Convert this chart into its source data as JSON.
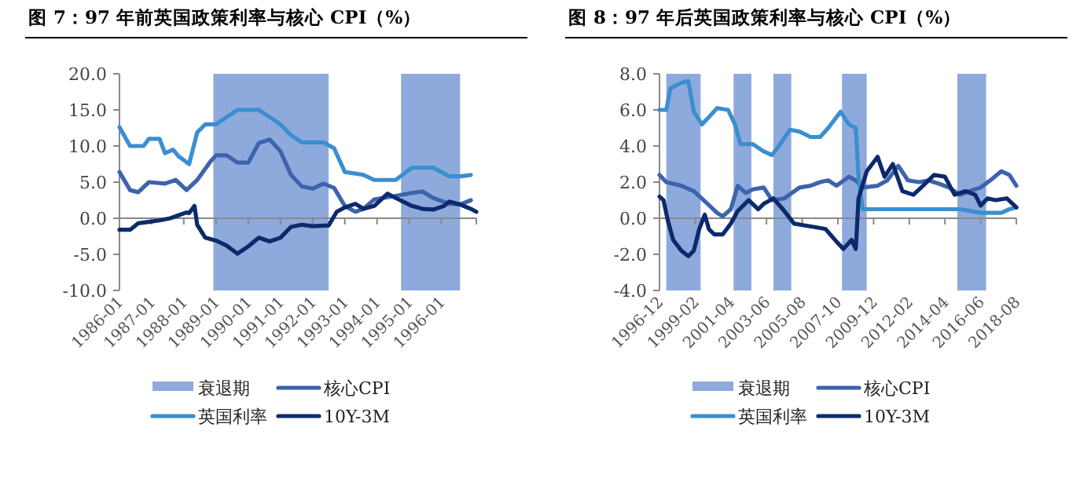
{
  "chart_data": [
    {
      "type": "line",
      "title": "图 7：97 年前英国政策利率与核心 CPI（%）",
      "xlim": [
        "1986-01",
        "1997-02"
      ],
      "xticks": [
        "1986-01",
        "1987-01",
        "1988-01",
        "1989-01",
        "1990-01",
        "1991-01",
        "1992-01",
        "1993-01",
        "1994-01",
        "1995-01",
        "1996-01"
      ],
      "ylim": [
        -10,
        20
      ],
      "yticks": [
        {
          "value": 20,
          "label": "20.0"
        },
        {
          "value": 15,
          "label": "15.0"
        },
        {
          "value": 10,
          "label": "10.0"
        },
        {
          "value": 5,
          "label": "5.0"
        },
        {
          "value": 0,
          "label": "0.0"
        },
        {
          "value": -5,
          "label": "-5.0"
        },
        {
          "value": -10,
          "label": "-10.0"
        }
      ],
      "legend": "bottom",
      "bands": [
        {
          "axis": "x",
          "from": "1988-12",
          "to": "1992-07",
          "label": "衰退期",
          "color": "#8eaadc"
        },
        {
          "axis": "x",
          "from": "1994-10",
          "to": "1996-08",
          "color": "#8eaadc"
        }
      ],
      "series": [
        {
          "name": "核心CPI",
          "color": "#3d63ad",
          "x": [
            "1986-01",
            "1986-05",
            "1986-08",
            "1986-12",
            "1987-06",
            "1987-10",
            "1988-02",
            "1988-06",
            "1988-11",
            "1989-01",
            "1989-05",
            "1989-09",
            "1990-01",
            "1990-05",
            "1990-09",
            "1991-01",
            "1991-05",
            "1991-09",
            "1992-01",
            "1992-05",
            "1992-09",
            "1993-01",
            "1993-05",
            "1993-08",
            "1993-12",
            "1994-08",
            "1995-02",
            "1995-06",
            "1995-10",
            "1996-04",
            "1996-08",
            "1996-12"
          ],
          "values": [
            6.4,
            3.9,
            3.6,
            5,
            4.8,
            5.3,
            3.9,
            5.3,
            7.9,
            8.7,
            8.7,
            7.7,
            7.7,
            10.4,
            10.9,
            9.3,
            6,
            4.4,
            4.1,
            4.8,
            4.2,
            1.7,
            0.9,
            1.3,
            2.6,
            3.1,
            3.5,
            3.7,
            2.8,
            2,
            1.9,
            2.5
          ]
        },
        {
          "name": "英国利率",
          "color": "#3b8ed0",
          "x": [
            "1986-01",
            "1986-05",
            "1986-10",
            "1986-12",
            "1987-04",
            "1987-06",
            "1987-09",
            "1987-11",
            "1988-03",
            "1988-06",
            "1988-09",
            "1989-01",
            "1989-05",
            "1989-09",
            "1990-05",
            "1990-09",
            "1991-01",
            "1991-05",
            "1991-09",
            "1992-05",
            "1992-09",
            "1993-01",
            "1993-08",
            "1993-12",
            "1994-08",
            "1995-02",
            "1995-10",
            "1996-04",
            "1996-08",
            "1996-12"
          ],
          "values": [
            12.6,
            10,
            10,
            11,
            11,
            9,
            9.5,
            8.6,
            7.5,
            11.9,
            13,
            13,
            14,
            15,
            15,
            14,
            13,
            11.5,
            10.5,
            10.5,
            9.7,
            6.4,
            6,
            5.3,
            5.3,
            7,
            7,
            5.8,
            5.8,
            6
          ]
        },
        {
          "name": "10Y-3M",
          "color": "#0c2a6b",
          "x": [
            "1986-01",
            "1986-05",
            "1986-08",
            "1986-12",
            "1987-04",
            "1987-08",
            "1987-11",
            "1988-02",
            "1988-03",
            "1988-05",
            "1988-06",
            "1988-09",
            "1989-01",
            "1989-05",
            "1989-09",
            "1990-01",
            "1990-05",
            "1990-09",
            "1991-01",
            "1991-05",
            "1991-09",
            "1992-01",
            "1992-07",
            "1992-10",
            "1993-01",
            "1993-05",
            "1993-08",
            "1993-12",
            "1994-05",
            "1994-08",
            "1995-02",
            "1995-06",
            "1995-10",
            "1996-02",
            "1996-04",
            "1996-08",
            "1996-12",
            "1997-02"
          ],
          "values": [
            -1.6,
            -1.6,
            -0.7,
            -0.5,
            -0.3,
            0,
            0.4,
            0.8,
            0.7,
            1.7,
            -0.9,
            -2.7,
            -3.1,
            -3.8,
            -4.9,
            -3.9,
            -2.7,
            -3.2,
            -2.7,
            -1.2,
            -0.9,
            -1.1,
            -1.0,
            0.9,
            1.5,
            2,
            1.3,
            1.7,
            3.4,
            2.8,
            1.7,
            1.3,
            1.2,
            1.7,
            2.3,
            1.9,
            1.3,
            0.9
          ]
        }
      ]
    },
    {
      "type": "line",
      "title": "图 8：97 年后英国政策利率与核心 CPI（%）",
      "xlim": [
        "1996-12",
        "2018-08"
      ],
      "xticks": [
        "1996-12",
        "1999-02",
        "2001-04",
        "2003-06",
        "2005-08",
        "2007-10",
        "2009-12",
        "2012-02",
        "2014-04",
        "2016-06",
        "2018-08"
      ],
      "ylim": [
        -4,
        8
      ],
      "yticks": [
        {
          "value": 8,
          "label": "8.0"
        },
        {
          "value": 6,
          "label": "6.0"
        },
        {
          "value": 4,
          "label": "4.0"
        },
        {
          "value": 2,
          "label": "2.0"
        },
        {
          "value": 0,
          "label": "0.0"
        },
        {
          "value": -2,
          "label": "-2.0"
        },
        {
          "value": -4,
          "label": "-4.0"
        }
      ],
      "legend": "bottom",
      "bands": [
        {
          "axis": "x",
          "from": "1997-05",
          "to": "1999-06",
          "label": "衰退期",
          "color": "#8eaadc"
        },
        {
          "axis": "x",
          "from": "2001-06",
          "to": "2002-07",
          "color": "#8eaadc"
        },
        {
          "axis": "x",
          "from": "2003-11",
          "to": "2004-12",
          "color": "#8eaadc"
        },
        {
          "axis": "x",
          "from": "2008-01",
          "to": "2009-07",
          "color": "#8eaadc"
        },
        {
          "axis": "x",
          "from": "2015-01",
          "to": "2016-10",
          "color": "#8eaadc"
        }
      ],
      "series": [
        {
          "name": "核心CPI",
          "color": "#3d63ad",
          "x": [
            "1996-12",
            "1997-05",
            "1998-04",
            "1999-01",
            "1999-11",
            "2000-06",
            "2000-10",
            "2001-04",
            "2001-09",
            "2002-03",
            "2002-08",
            "2003-04",
            "2003-10",
            "2004-07",
            "2005-06",
            "2006-02",
            "2006-09",
            "2007-03",
            "2007-09",
            "2008-06",
            "2008-11",
            "2009-04",
            "2010-03",
            "2010-10",
            "2011-06",
            "2012-01",
            "2012-09",
            "2013-04",
            "2013-12",
            "2014-07",
            "2015-03",
            "2015-10",
            "2016-06",
            "2017-01",
            "2017-09",
            "2018-03",
            "2018-08"
          ],
          "values": [
            2.4,
            2.0,
            1.8,
            1.5,
            0.8,
            0.3,
            0.1,
            0.5,
            1.8,
            1.4,
            1.6,
            1.7,
            1.0,
            1.1,
            1.7,
            1.8,
            2.0,
            2.1,
            1.8,
            2.3,
            2.1,
            1.7,
            1.8,
            2.1,
            2.9,
            2.1,
            2.0,
            2.1,
            1.9,
            1.7,
            1.3,
            1.5,
            1.7,
            2.1,
            2.6,
            2.4,
            1.8
          ]
        },
        {
          "name": "英国利率",
          "color": "#3b8ed0",
          "x": [
            "1996-12",
            "1997-05",
            "1997-08",
            "1998-04",
            "1998-09",
            "1999-01",
            "1999-07",
            "1999-12",
            "2000-06",
            "2001-02",
            "2001-07",
            "2001-11",
            "2002-08",
            "2003-04",
            "2003-10",
            "2004-03",
            "2004-11",
            "2005-06",
            "2006-02",
            "2006-09",
            "2007-03",
            "2007-09",
            "2007-12",
            "2008-06",
            "2008-11",
            "2009-01",
            "2009-04",
            "2012-01",
            "2015-03",
            "2016-06",
            "2017-09",
            "2018-03",
            "2018-08"
          ],
          "values": [
            6.0,
            6.0,
            7.2,
            7.5,
            7.6,
            5.9,
            5.2,
            5.6,
            6.1,
            6,
            5.2,
            4.1,
            4.1,
            3.7,
            3.5,
            4,
            4.9,
            4.8,
            4.5,
            4.5,
            5,
            5.6,
            5.9,
            5.2,
            5.0,
            2.3,
            0.5,
            0.5,
            0.5,
            0.3,
            0.3,
            0.5,
            0.6
          ]
        },
        {
          "name": "10Y-3M",
          "color": "#0c2a6b",
          "x": [
            "1996-12",
            "1997-03",
            "1997-06",
            "1997-10",
            "1998-04",
            "1998-09",
            "1999-01",
            "1999-05",
            "1999-09",
            "1999-12",
            "2000-04",
            "2000-10",
            "2001-04",
            "2001-09",
            "2002-05",
            "2002-12",
            "2003-04",
            "2003-11",
            "2004-07",
            "2005-02",
            "2005-10",
            "2006-06",
            "2007-01",
            "2007-09",
            "2008-02",
            "2008-08",
            "2008-11",
            "2009-01",
            "2009-07",
            "2010-03",
            "2010-08",
            "2011-02",
            "2011-09",
            "2012-05",
            "2012-12",
            "2013-08",
            "2014-04",
            "2014-11",
            "2015-07",
            "2016-02",
            "2016-06",
            "2016-11",
            "2017-05",
            "2018-01",
            "2018-08"
          ],
          "values": [
            1.2,
            1.0,
            -0.1,
            -1.2,
            -1.8,
            -2.1,
            -1.8,
            -0.6,
            0.2,
            -0.6,
            -0.9,
            -0.9,
            -0.3,
            0.4,
            1.0,
            0.5,
            0.8,
            1.1,
            0.4,
            -0.3,
            -0.4,
            -0.5,
            -0.6,
            -1.3,
            -1.7,
            -1.2,
            -1.7,
            1.1,
            2.6,
            3.4,
            2.3,
            3.0,
            1.5,
            1.3,
            1.8,
            2.4,
            2.3,
            1.3,
            1.5,
            1.3,
            0.7,
            1.1,
            1.0,
            1.1,
            0.6
          ]
        }
      ]
    }
  ]
}
